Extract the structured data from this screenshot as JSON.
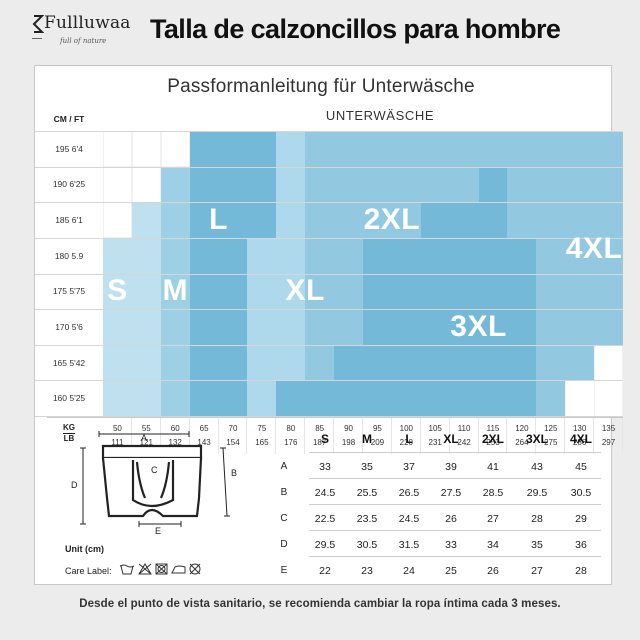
{
  "header": {
    "brand": "Fullluwaa",
    "tagline": "full of nature",
    "title": "Talla de calzoncillos para hombre"
  },
  "chart": {
    "title": "Passformanleitung für Unterwäsche",
    "subtitle": "UNTERWÄSCHE",
    "height_header": "CM / FT",
    "weight_header_kg": "KG",
    "weight_header_lb": "LB"
  },
  "chart_data": {
    "type": "heatmap",
    "title": "Passformanleitung für Unterwäsche",
    "subtitle": "UNTERWÄSCHE",
    "height_rows": [
      "195  6'4",
      "190  6'25",
      "185  6'1",
      "180  5.9",
      "175  5'75",
      "170  5'6",
      "165  5'42",
      "160  5'25"
    ],
    "weight_kg": [
      50,
      55,
      60,
      65,
      70,
      75,
      80,
      85,
      90,
      95,
      100,
      105,
      110,
      115,
      120,
      125,
      130,
      135
    ],
    "weight_lb": [
      111,
      121,
      132,
      143,
      154,
      165,
      176,
      187,
      198,
      209,
      220,
      231,
      242,
      253,
      264,
      275,
      286,
      297
    ],
    "sizes": [
      "S",
      "M",
      "L",
      "XL",
      "2XL",
      "3XL",
      "4XL"
    ],
    "size_grid": [
      [
        "",
        "",
        "",
        "L",
        "L",
        "L",
        "XL",
        "2XL",
        "2XL",
        "2XL",
        "2XL",
        "2XL",
        "2XL",
        "2XL",
        "2XL",
        "4XL",
        "4XL",
        "4XL"
      ],
      [
        "",
        "",
        "M",
        "L",
        "L",
        "L",
        "XL",
        "2XL",
        "2XL",
        "2XL",
        "2XL",
        "2XL",
        "2XL",
        "3XL",
        "2XL",
        "4XL",
        "4XL",
        "4XL"
      ],
      [
        "",
        "S",
        "M",
        "L",
        "L",
        "L",
        "XL",
        "2XL",
        "2XL",
        "2XL",
        "2XL",
        "3XL",
        "3XL",
        "3XL",
        "2XL",
        "4XL",
        "4XL",
        "4XL"
      ],
      [
        "S",
        "S",
        "M",
        "L",
        "L",
        "XL",
        "XL",
        "2XL",
        "2XL",
        "3XL",
        "3XL",
        "3XL",
        "3XL",
        "3XL",
        "3XL",
        "4XL",
        "4XL",
        "4XL"
      ],
      [
        "S",
        "S",
        "M",
        "L",
        "L",
        "XL",
        "XL",
        "2XL",
        "2XL",
        "3XL",
        "3XL",
        "3XL",
        "3XL",
        "3XL",
        "3XL",
        "4XL",
        "4XL",
        "4XL"
      ],
      [
        "S",
        "S",
        "M",
        "L",
        "L",
        "XL",
        "XL",
        "2XL",
        "2XL",
        "3XL",
        "3XL",
        "3XL",
        "3XL",
        "3XL",
        "3XL",
        "4XL",
        "4XL",
        "4XL"
      ],
      [
        "S",
        "S",
        "M",
        "L",
        "L",
        "XL",
        "XL",
        "2XL",
        "3XL",
        "3XL",
        "3XL",
        "3XL",
        "3XL",
        "3XL",
        "3XL",
        "4XL",
        "4XL",
        ""
      ],
      [
        "S",
        "S",
        "M",
        "L",
        "L",
        "XL",
        "3XL",
        "3XL",
        "3XL",
        "3XL",
        "3XL",
        "3XL",
        "3XL",
        "3XL",
        "3XL",
        "4XL",
        "",
        ""
      ]
    ],
    "size_colors": {
      "S": "#bfe0ee",
      "M": "#9dd0e5",
      "L": "#74b9d7",
      "XL": "#aed9ec",
      "2XL": "#92c9e0",
      "3XL": "#74b9d7",
      "4XL": "#92c9e0"
    }
  },
  "size_table": {
    "columns": [
      "S",
      "M",
      "L",
      "XL",
      "2XL",
      "3XL",
      "4XL"
    ],
    "rows": [
      {
        "label": "A",
        "values": [
          "33",
          "35",
          "37",
          "39",
          "41",
          "43",
          "45"
        ]
      },
      {
        "label": "B",
        "values": [
          "24.5",
          "25.5",
          "26.5",
          "27.5",
          "28.5",
          "29.5",
          "30.5"
        ]
      },
      {
        "label": "C",
        "values": [
          "22.5",
          "23.5",
          "24.5",
          "26",
          "27",
          "28",
          "29"
        ]
      },
      {
        "label": "D",
        "values": [
          "29.5",
          "30.5",
          "31.5",
          "33",
          "34",
          "35",
          "36"
        ]
      },
      {
        "label": "E",
        "values": [
          "22",
          "23",
          "24",
          "25",
          "26",
          "27",
          "28"
        ]
      }
    ]
  },
  "diagram": {
    "labels": [
      "A",
      "B",
      "C",
      "D",
      "E"
    ],
    "unit": "Unit (cm)",
    "care_label": "Care Label:",
    "care_icons": [
      "wash-30-icon",
      "no-bleach-icon",
      "no-tumble-dry-icon",
      "iron-icon",
      "no-dry-clean-icon"
    ]
  },
  "footer": "Desde el punto de vista sanitario, se recomienda cambiar la ropa íntima cada 3 meses."
}
